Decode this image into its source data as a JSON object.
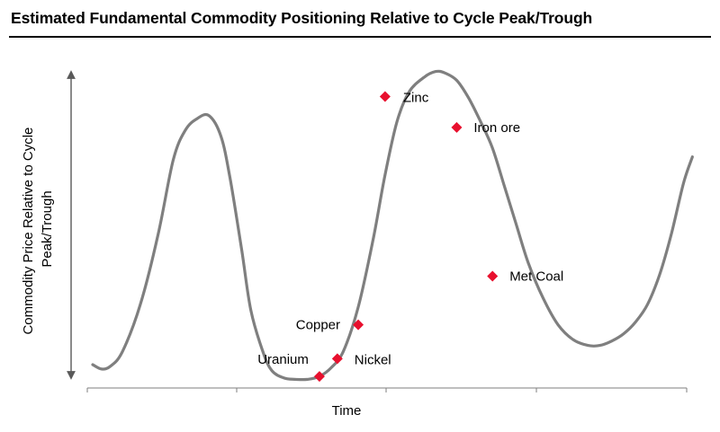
{
  "chart_data": {
    "type": "line",
    "title": "Estimated Fundamental Commodity Positioning Relative to Cycle Peak/Trough",
    "xlabel": "Time",
    "ylabel": [
      "Commodity Price Relative to Cycle",
      "Peak/Trough"
    ],
    "xlim": [
      0,
      10
    ],
    "ylim": [
      0,
      10
    ],
    "grid": false,
    "series": [
      {
        "x": [
          0.0,
          0.15,
          0.3,
          0.5,
          0.8,
          1.1,
          1.35,
          1.55,
          1.75,
          1.95,
          2.15,
          2.3,
          2.5,
          2.65,
          2.85,
          3.0,
          3.2,
          3.4,
          3.6,
          3.8,
          4.0,
          4.2,
          4.45,
          4.7,
          4.9,
          5.1,
          5.3,
          5.55,
          5.75,
          5.9,
          6.1,
          6.3,
          6.5,
          6.7,
          6.9,
          7.1,
          7.3,
          7.55,
          7.8,
          8.05,
          8.3,
          8.5,
          8.7,
          8.9,
          9.1,
          9.3,
          9.5,
          9.7,
          9.9,
          10.05
        ],
        "values": [
          0.55,
          0.4,
          0.5,
          1.0,
          2.6,
          5.0,
          7.5,
          8.5,
          8.9,
          9.0,
          8.3,
          6.9,
          4.4,
          2.4,
          1.0,
          0.35,
          0.1,
          0.05,
          0.05,
          0.15,
          0.45,
          1.0,
          2.5,
          4.8,
          7.0,
          8.8,
          9.8,
          10.3,
          10.5,
          10.45,
          10.2,
          9.6,
          8.8,
          7.9,
          6.6,
          5.3,
          4.0,
          2.8,
          1.9,
          1.4,
          1.2,
          1.2,
          1.35,
          1.6,
          2.0,
          2.6,
          3.6,
          5.0,
          6.7,
          7.6
        ]
      }
    ],
    "markers": [
      {
        "label": "Uranium",
        "x": 3.8,
        "y": 0.15
      },
      {
        "label": "Nickel",
        "x": 4.1,
        "y": 0.75
      },
      {
        "label": "Copper",
        "x": 4.45,
        "y": 1.9
      },
      {
        "label": "Zinc",
        "x": 4.9,
        "y": 9.65
      },
      {
        "label": "Iron ore",
        "x": 6.1,
        "y": 8.6
      },
      {
        "label": "Met Coal",
        "x": 6.7,
        "y": 3.55
      }
    ],
    "colors": {
      "curve": "#7f7f7f",
      "marker": "#e8102e",
      "axis": "#595959"
    }
  }
}
